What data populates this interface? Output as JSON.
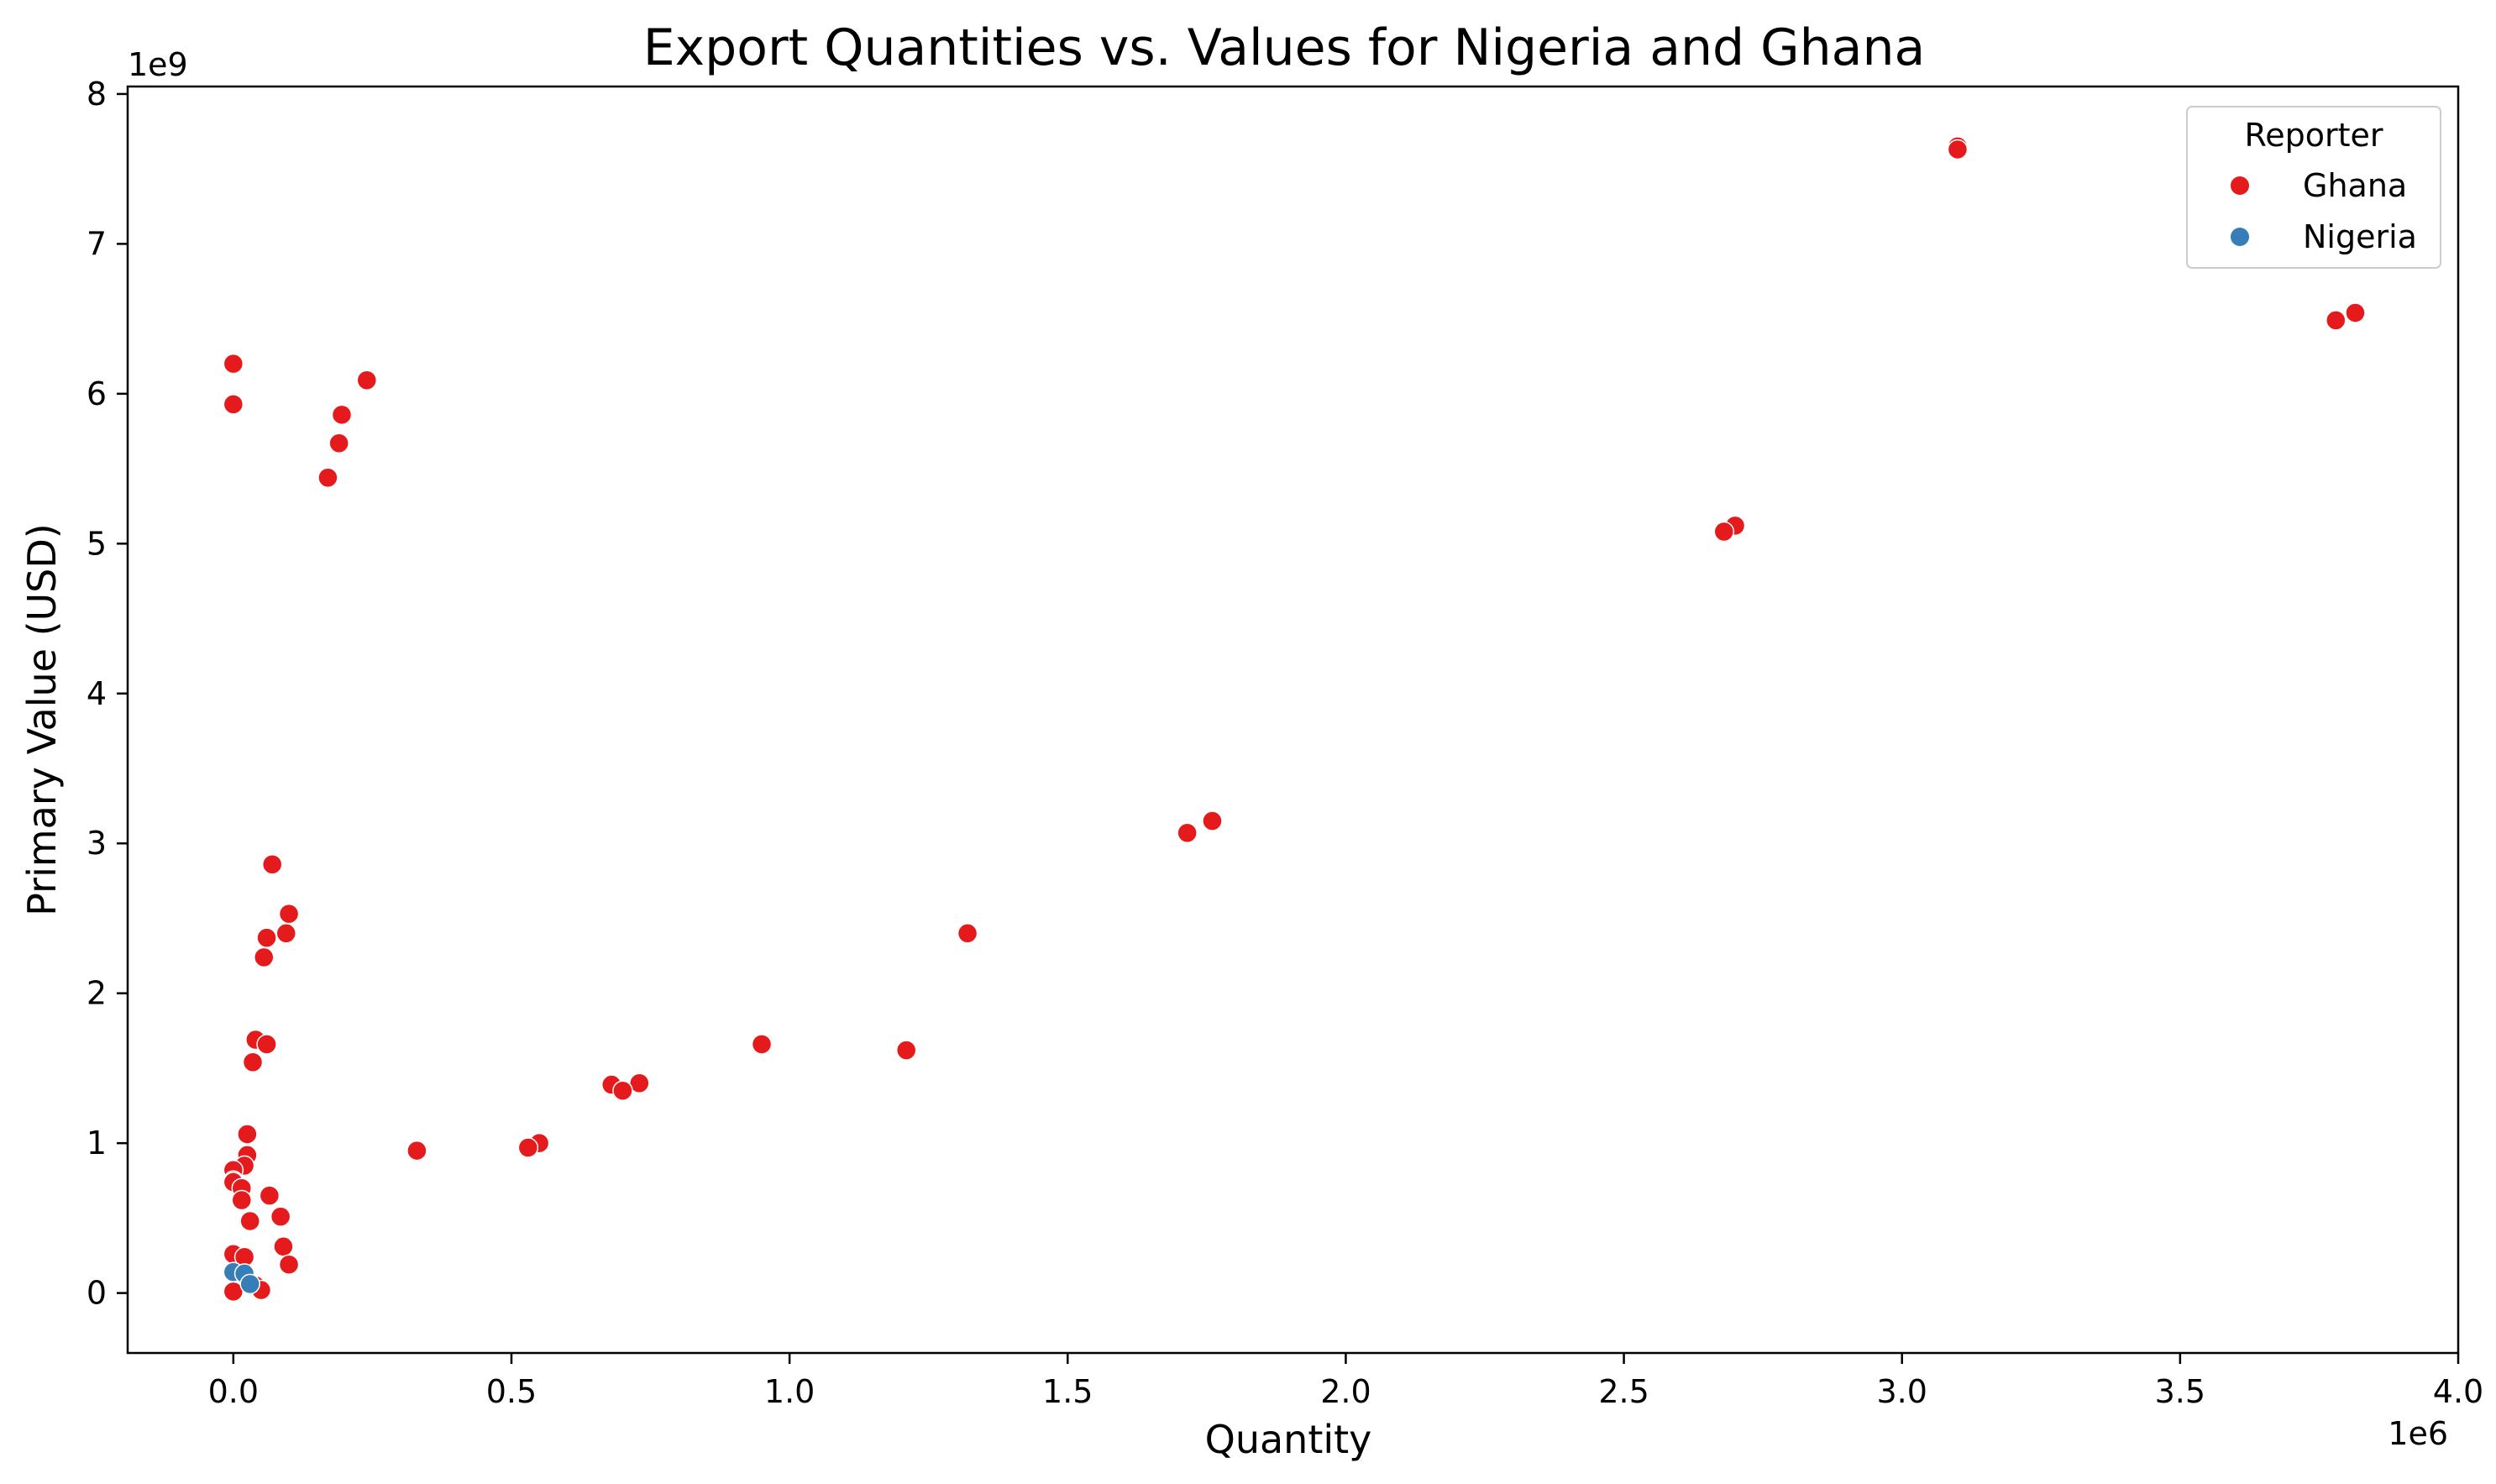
{
  "chart_data": {
    "type": "scatter",
    "title": "Export Quantities vs. Values for Nigeria and Ghana",
    "xlabel": "Quantity",
    "ylabel": "Primary Value (USD)",
    "x_offset_label": "1e6",
    "y_offset_label": "1e9",
    "xlim": [
      -0.19,
      4.0
    ],
    "ylim": [
      -0.4,
      8.05
    ],
    "x_ticks": [
      0.0,
      0.5,
      1.0,
      1.5,
      2.0,
      2.5,
      3.0,
      3.5,
      4.0
    ],
    "x_tick_labels": [
      "0.0",
      "0.5",
      "1.0",
      "1.5",
      "2.0",
      "2.5",
      "3.0",
      "3.5",
      "4.0"
    ],
    "y_ticks": [
      0,
      1,
      2,
      3,
      4,
      5,
      6,
      7,
      8
    ],
    "y_tick_labels": [
      "0",
      "1",
      "2",
      "3",
      "4",
      "5",
      "6",
      "7",
      "8"
    ],
    "grid": false,
    "legend": {
      "title": "Reporter",
      "position": "top-right"
    },
    "series": [
      {
        "name": "Ghana",
        "color": "#e41a1c",
        "points": [
          [
            3.1,
            7.65
          ],
          [
            3.1,
            7.63
          ],
          [
            3.815,
            6.54
          ],
          [
            3.78,
            6.49
          ],
          [
            2.7,
            5.12
          ],
          [
            2.68,
            5.08
          ],
          [
            1.76,
            3.15
          ],
          [
            1.715,
            3.07
          ],
          [
            1.32,
            2.4
          ],
          [
            1.21,
            1.62
          ],
          [
            0.95,
            1.66
          ],
          [
            0.73,
            1.4
          ],
          [
            0.68,
            1.39
          ],
          [
            0.7,
            1.35
          ],
          [
            0.55,
            1.0
          ],
          [
            0.53,
            0.97
          ],
          [
            0.33,
            0.95
          ],
          [
            0.24,
            6.09
          ],
          [
            0.195,
            5.86
          ],
          [
            0.19,
            5.67
          ],
          [
            0.17,
            5.44
          ],
          [
            0.0,
            6.2
          ],
          [
            0.0,
            5.93
          ],
          [
            0.07,
            2.86
          ],
          [
            0.1,
            2.53
          ],
          [
            0.095,
            2.4
          ],
          [
            0.06,
            2.37
          ],
          [
            0.055,
            2.24
          ],
          [
            0.04,
            1.69
          ],
          [
            0.06,
            1.66
          ],
          [
            0.035,
            1.54
          ],
          [
            0.025,
            1.06
          ],
          [
            0.025,
            0.92
          ],
          [
            0.02,
            0.85
          ],
          [
            0.0,
            0.82
          ],
          [
            0.0,
            0.75
          ],
          [
            0.0,
            0.74
          ],
          [
            0.015,
            0.7
          ],
          [
            0.015,
            0.62
          ],
          [
            0.065,
            0.65
          ],
          [
            0.085,
            0.51
          ],
          [
            0.03,
            0.48
          ],
          [
            0.09,
            0.31
          ],
          [
            0.0,
            0.26
          ],
          [
            0.02,
            0.24
          ],
          [
            0.1,
            0.19
          ],
          [
            0.04,
            0.05
          ],
          [
            0.05,
            0.02
          ],
          [
            0.0,
            0.01
          ]
        ]
      },
      {
        "name": "Nigeria",
        "color": "#377eb8",
        "points": [
          [
            0.0,
            0.14
          ],
          [
            0.02,
            0.13
          ],
          [
            0.03,
            0.06
          ]
        ]
      }
    ]
  }
}
